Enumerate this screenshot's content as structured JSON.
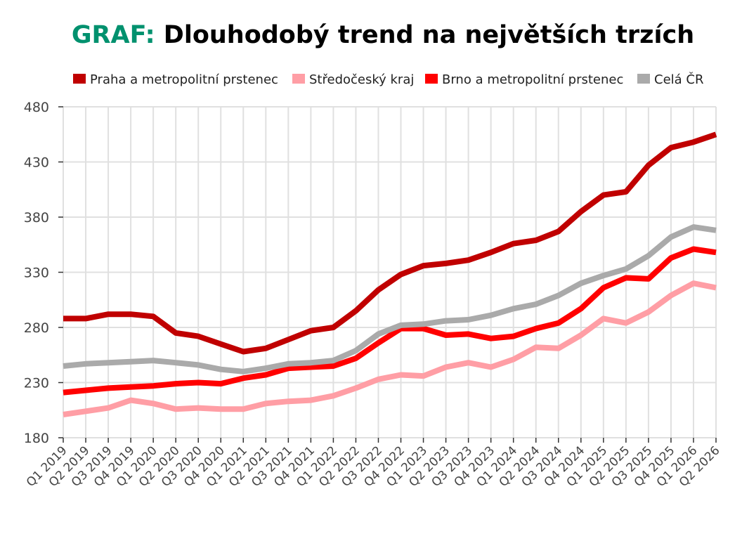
{
  "title": {
    "prefix": "GRAF:",
    "text": "Dlouhodobý trend na největších trzích"
  },
  "chart_data": {
    "type": "line",
    "title": "GRAF: Dlouhodobý trend na největších trzích",
    "xlabel": "",
    "ylabel": "",
    "ylim": [
      180,
      480
    ],
    "yticks": [
      180,
      230,
      280,
      330,
      380,
      430,
      480
    ],
    "grid": true,
    "legend_position": "top",
    "categories": [
      "Q1 2019",
      "Q2 2019",
      "Q3 2019",
      "Q4 2019",
      "Q1 2020",
      "Q2 2020",
      "Q3 2020",
      "Q4 2020",
      "Q1 2021",
      "Q2 2021",
      "Q3 2021",
      "Q4 2021",
      "Q1 2022",
      "Q2 2022",
      "Q3 2022",
      "Q4 2022",
      "Q1 2023",
      "Q2 2023",
      "Q3 2023",
      "Q4 2023",
      "Q1 2024",
      "Q2 2024",
      "Q3 2024",
      "Q4 2024",
      "Q1 2025",
      "Q2 2025",
      "Q3 2025",
      "Q4 2025",
      "Q1 2026",
      "Q2 2026"
    ],
    "series": [
      {
        "name": "Praha a metropolitní prstenec",
        "color": "#c00000",
        "values": [
          288,
          288,
          292,
          292,
          290,
          275,
          272,
          265,
          258,
          261,
          269,
          277,
          280,
          295,
          314,
          328,
          336,
          338,
          341,
          348,
          356,
          359,
          367,
          385,
          400,
          403,
          427,
          443,
          448,
          455
        ]
      },
      {
        "name": "Středočeský kraj",
        "color": "#ff9ea5",
        "values": [
          201,
          204,
          207,
          214,
          211,
          206,
          207,
          206,
          206,
          211,
          213,
          214,
          218,
          225,
          233,
          237,
          236,
          244,
          248,
          244,
          251,
          262,
          261,
          273,
          288,
          284,
          294,
          309,
          320,
          316
        ]
      },
      {
        "name": "Brno a metropolitní prstenec",
        "color": "#ff0000",
        "values": [
          221,
          223,
          225,
          226,
          227,
          229,
          230,
          229,
          234,
          237,
          243,
          244,
          245,
          252,
          266,
          279,
          279,
          273,
          274,
          270,
          272,
          279,
          284,
          297,
          316,
          325,
          324,
          343,
          351,
          348
        ]
      },
      {
        "name": "Celá ČR",
        "color": "#aaaaaa",
        "values": [
          245,
          247,
          248,
          249,
          250,
          248,
          246,
          242,
          240,
          243,
          247,
          248,
          250,
          259,
          274,
          282,
          283,
          286,
          287,
          291,
          297,
          301,
          309,
          320,
          327,
          333,
          345,
          362,
          371,
          368
        ]
      }
    ]
  }
}
